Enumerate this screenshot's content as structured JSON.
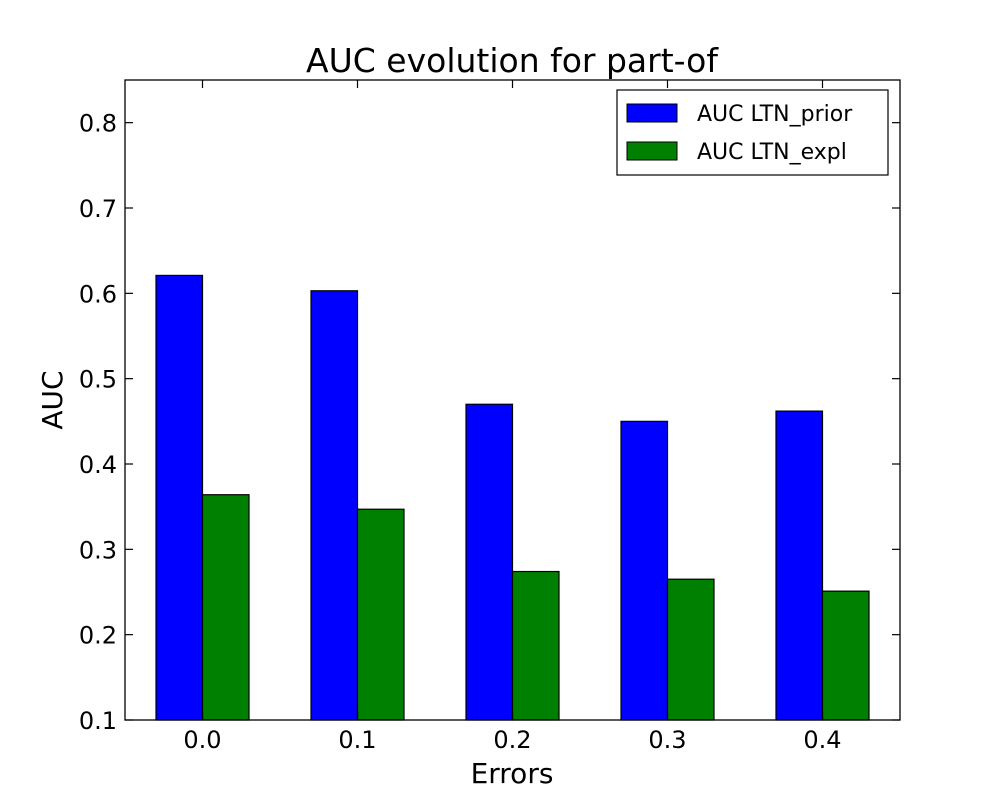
{
  "chart_data": {
    "type": "bar",
    "title": "AUC evolution for part-of",
    "xlabel": "Errors",
    "ylabel": "AUC",
    "categories": [
      "0.0",
      "0.1",
      "0.2",
      "0.3",
      "0.4"
    ],
    "ylim": [
      0.1,
      0.85
    ],
    "yticks": [
      "0.1",
      "0.2",
      "0.3",
      "0.4",
      "0.5",
      "0.6",
      "0.7",
      "0.8"
    ],
    "grid": false,
    "legend_position": "top-right",
    "series": [
      {
        "name": "AUC LTN_prior",
        "color": "#0000ff",
        "values": [
          0.621,
          0.603,
          0.47,
          0.45,
          0.462
        ]
      },
      {
        "name": "AUC LTN_expl",
        "color": "#008000",
        "values": [
          0.364,
          0.347,
          0.274,
          0.265,
          0.251
        ]
      }
    ]
  }
}
